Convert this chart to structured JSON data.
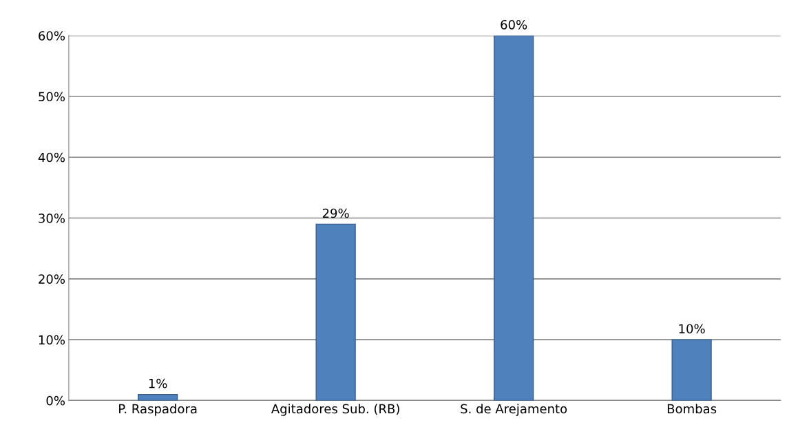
{
  "chart_data": {
    "type": "bar",
    "categories": [
      "P. Raspadora",
      "Agitadores Sub. (RB)",
      "S. de Arejamento",
      "Bombas"
    ],
    "values": [
      1,
      29,
      60,
      10
    ],
    "color": "#4f81bd",
    "value_labels": [
      "1%",
      "29%",
      "60%",
      "10%"
    ],
    "ylim": [
      0,
      60
    ],
    "yticks": [
      {
        "value": 0,
        "label": "0%"
      },
      {
        "value": 10,
        "label": "10%"
      },
      {
        "value": 20,
        "label": "20%"
      },
      {
        "value": 30,
        "label": "30%"
      },
      {
        "value": 40,
        "label": "40%"
      },
      {
        "value": 50,
        "label": "50%"
      },
      {
        "value": 60,
        "label": "60%"
      }
    ],
    "grid": "y",
    "legend": false
  }
}
